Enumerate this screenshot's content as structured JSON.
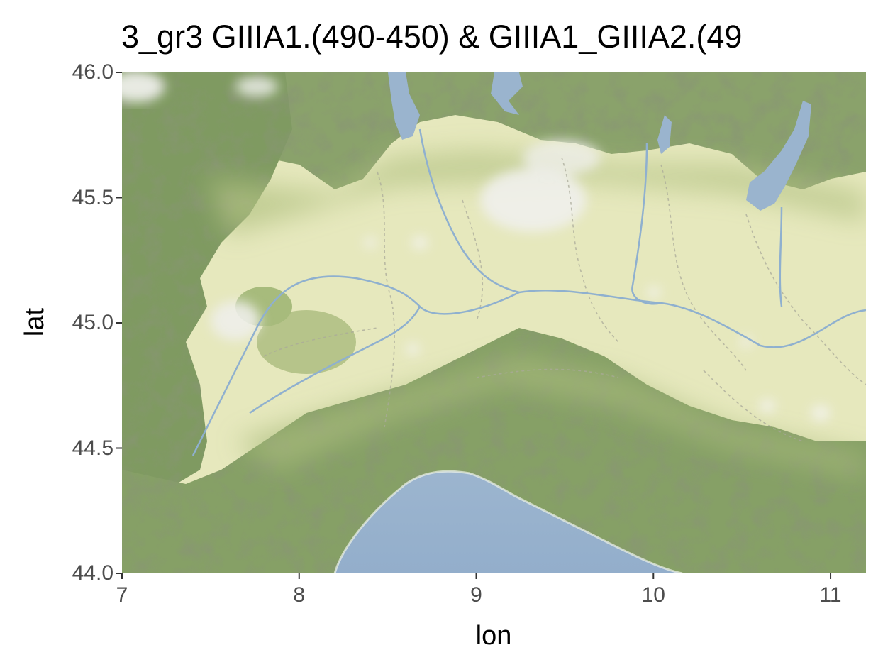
{
  "map": {
    "title": "3_gr3 GIIIA1.(490-450) & GIIIA1_GIIIA2.(49",
    "xlabel": "lon",
    "ylabel": "lat",
    "xlim": [
      7,
      11.2
    ],
    "ylim": [
      44.0,
      46.0
    ],
    "x_ticks": [
      {
        "value": 7,
        "label": "7"
      },
      {
        "value": 8,
        "label": "8"
      },
      {
        "value": 9,
        "label": "9"
      },
      {
        "value": 10,
        "label": "10"
      },
      {
        "value": 11,
        "label": "11"
      }
    ],
    "y_ticks": [
      {
        "value": 44.0,
        "label": "44.0"
      },
      {
        "value": 44.5,
        "label": "44.5"
      },
      {
        "value": 45.0,
        "label": "45.0"
      },
      {
        "value": 45.5,
        "label": "45.5"
      },
      {
        "value": 46.0,
        "label": "46.0"
      }
    ],
    "basemap": "terrain",
    "colors": {
      "water": "#9ab4ce",
      "plain": "#e6e6b8",
      "mountain": "#7d9a62",
      "urban": "#eeeeee",
      "tick_text": "#4d4d4d",
      "axis_line": "#333333"
    }
  }
}
